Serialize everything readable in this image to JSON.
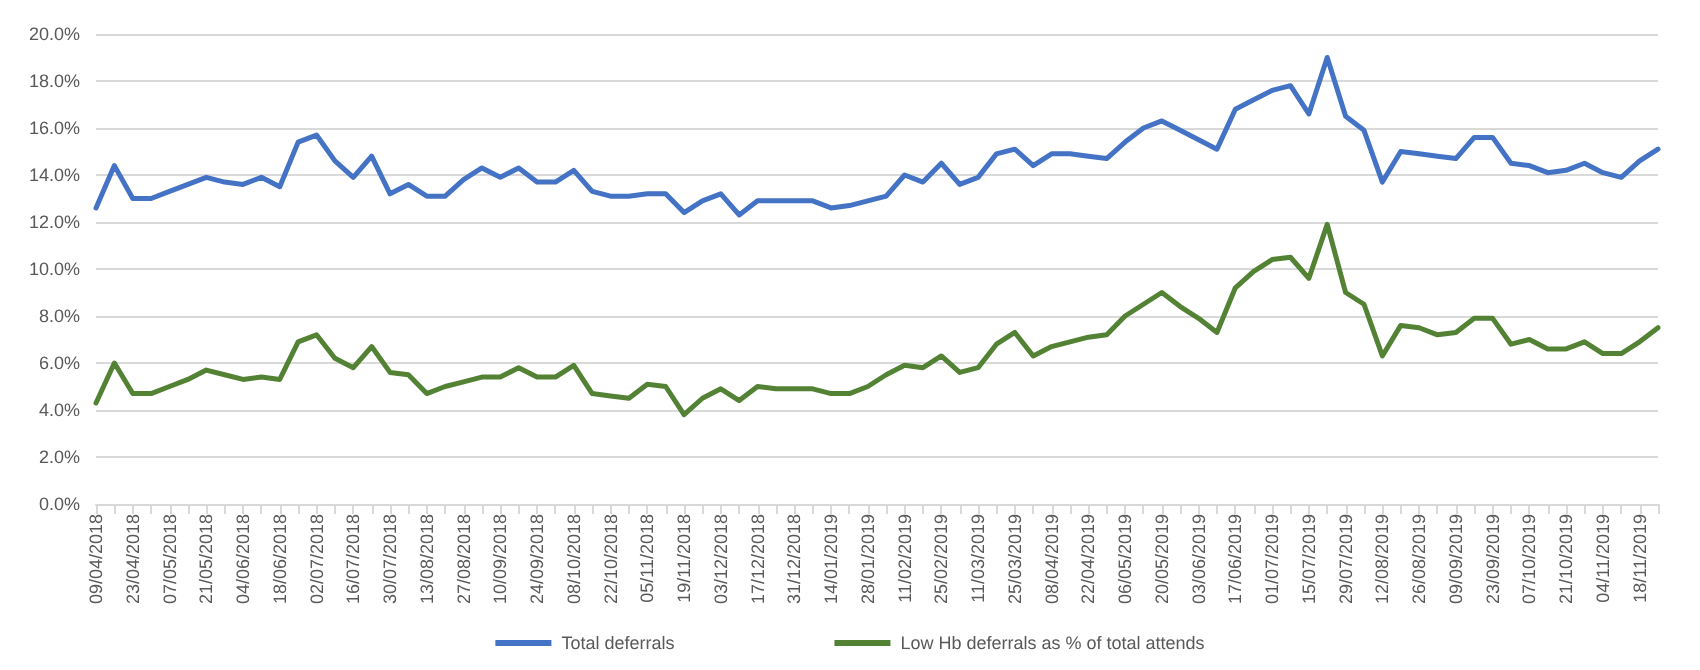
{
  "chart_data": {
    "type": "line",
    "categories": [
      "09/04/2018",
      null,
      "23/04/2018",
      null,
      "07/05/2018",
      null,
      "21/05/2018",
      null,
      "04/06/2018",
      null,
      "18/06/2018",
      null,
      "02/07/2018",
      null,
      "16/07/2018",
      null,
      "30/07/2018",
      null,
      "13/08/2018",
      null,
      "27/08/2018",
      null,
      "10/09/2018",
      null,
      "24/09/2018",
      null,
      "08/10/2018",
      null,
      "22/10/2018",
      null,
      "05/11/2018",
      null,
      "19/11/2018",
      null,
      "03/12/2018",
      null,
      "17/12/2018",
      null,
      "31/12/2018",
      null,
      "14/01/2019",
      null,
      "28/01/2019",
      null,
      "11/02/2019",
      null,
      "25/02/2019",
      null,
      "11/03/2019",
      null,
      "25/03/2019",
      null,
      "08/04/2019",
      null,
      "22/04/2019",
      null,
      "06/05/2019",
      null,
      "20/05/2019",
      null,
      "03/06/2019",
      null,
      "17/06/2019",
      null,
      "01/07/2019",
      null,
      "15/07/2019",
      null,
      "29/07/2019",
      null,
      "12/08/2019",
      null,
      "26/08/2019",
      null,
      "09/09/2019",
      null,
      "23/09/2019",
      null,
      "07/10/2019",
      null,
      "21/10/2019",
      null,
      "04/11/2019",
      null,
      "18/11/2019",
      null
    ],
    "series": [
      {
        "name": "Total deferrals",
        "color": "#4472c4",
        "values": [
          12.6,
          14.4,
          13.0,
          13.0,
          13.3,
          13.6,
          13.9,
          13.7,
          13.6,
          13.9,
          13.5,
          15.4,
          15.7,
          14.6,
          13.9,
          14.8,
          13.2,
          13.6,
          13.1,
          13.1,
          13.8,
          14.3,
          13.9,
          14.3,
          13.7,
          13.7,
          14.2,
          13.3,
          13.1,
          13.1,
          13.2,
          13.2,
          12.4,
          12.9,
          13.2,
          12.3,
          12.9,
          12.9,
          12.9,
          12.9,
          12.6,
          12.7,
          12.9,
          13.1,
          14.0,
          13.7,
          14.5,
          13.6,
          13.9,
          14.9,
          15.1,
          14.4,
          14.9,
          14.9,
          14.8,
          14.7,
          15.4,
          16.0,
          16.3,
          15.9,
          15.5,
          15.1,
          16.8,
          17.2,
          17.6,
          17.8,
          16.6,
          19.0,
          16.5,
          15.9,
          13.7,
          15.0,
          14.9,
          14.8,
          14.7,
          15.6,
          15.6,
          14.5,
          14.4,
          14.1,
          14.2,
          14.5,
          14.1,
          13.9,
          14.6,
          15.1
        ]
      },
      {
        "name": "Low Hb deferrals as % of total attends",
        "color": "#548235",
        "values": [
          4.3,
          6.0,
          4.7,
          4.7,
          5.0,
          5.3,
          5.7,
          5.5,
          5.3,
          5.4,
          5.3,
          6.9,
          7.2,
          6.2,
          5.8,
          6.7,
          5.6,
          5.5,
          4.7,
          5.0,
          5.2,
          5.4,
          5.4,
          5.8,
          5.4,
          5.4,
          5.9,
          4.7,
          4.6,
          4.5,
          5.1,
          5.0,
          3.8,
          4.5,
          4.9,
          4.4,
          5.0,
          4.9,
          4.9,
          4.9,
          4.7,
          4.7,
          5.0,
          5.5,
          5.9,
          5.8,
          6.3,
          5.6,
          5.8,
          6.8,
          7.3,
          6.3,
          6.7,
          6.9,
          7.1,
          7.2,
          8.0,
          8.5,
          9.0,
          8.4,
          7.9,
          7.3,
          9.2,
          9.9,
          10.4,
          10.5,
          9.6,
          11.9,
          9.0,
          8.5,
          6.3,
          7.6,
          7.5,
          7.2,
          7.3,
          7.9,
          7.9,
          6.8,
          7.0,
          6.6,
          6.6,
          6.9,
          6.4,
          6.4,
          6.9,
          7.5
        ]
      }
    ],
    "ylim": [
      0,
      20
    ],
    "yticks": [
      {
        "value": 0,
        "label": "0.0%"
      },
      {
        "value": 2,
        "label": "2.0%"
      },
      {
        "value": 4,
        "label": "4.0%"
      },
      {
        "value": 6,
        "label": "6.0%"
      },
      {
        "value": 8,
        "label": "8.0%"
      },
      {
        "value": 10,
        "label": "10.0%"
      },
      {
        "value": 12,
        "label": "12.0%"
      },
      {
        "value": 14,
        "label": "14.0%"
      },
      {
        "value": 16,
        "label": "16.0%"
      },
      {
        "value": 18,
        "label": "18.0%"
      },
      {
        "value": 20,
        "label": "20.0%"
      }
    ],
    "grid": "y",
    "legend": "bottom",
    "marker": "none",
    "line_style": "solid"
  }
}
